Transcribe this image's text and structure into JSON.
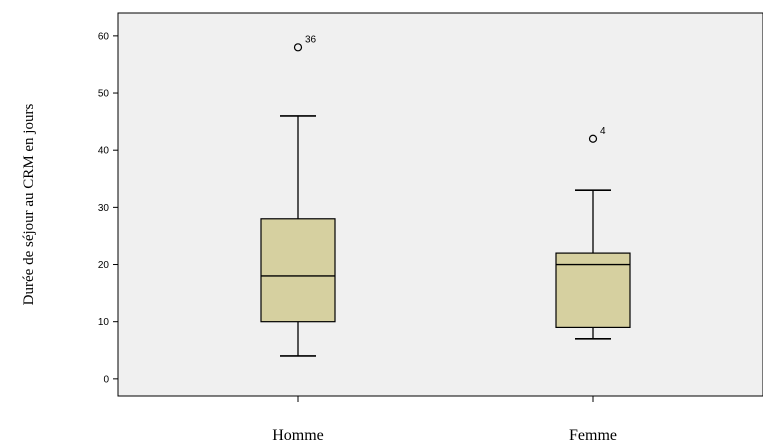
{
  "chart_data": {
    "type": "boxplot",
    "title": "",
    "xlabel": "",
    "ylabel": "Durée de séjour au CRM en jours",
    "ylim": [
      -3,
      64
    ],
    "yticks": [
      0,
      10,
      20,
      30,
      40,
      50,
      60
    ],
    "grid": false,
    "categories": [
      "Homme",
      "Femme"
    ],
    "boxes": [
      {
        "category": "Homme",
        "whisker_low": 4,
        "q1": 10,
        "median": 18,
        "q3": 28,
        "whisker_high": 46,
        "outliers": [
          {
            "value": 58,
            "label": "36"
          }
        ]
      },
      {
        "category": "Femme",
        "whisker_low": 7,
        "q1": 9,
        "median": 20,
        "q3": 22,
        "whisker_high": 33,
        "outliers": [
          {
            "value": 42,
            "label": "4"
          }
        ]
      }
    ],
    "colors": {
      "plot_background": "#f0f0f0",
      "box_fill": "#d6d0a0",
      "line": "#000000"
    }
  }
}
